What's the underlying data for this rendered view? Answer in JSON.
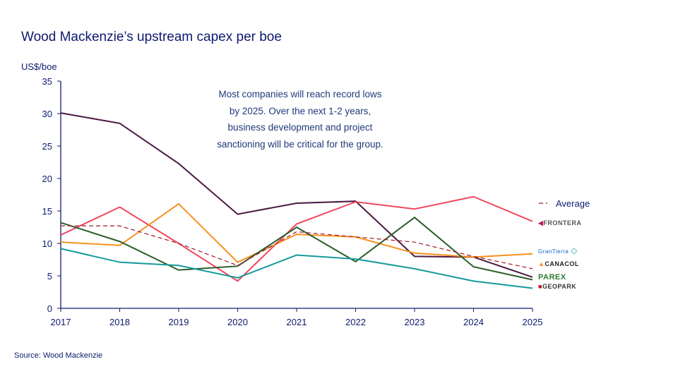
{
  "title": "Wood Mackenzie’s upstream capex per boe",
  "source": "Source: Wood Mackenzie",
  "note": "Most companies will reach record lows by 2025. Over the next 1-2 years, business development and project sanctioning will be critical for the group.",
  "chart_data": {
    "type": "line",
    "title": "Wood Mackenzie’s upstream capex per boe",
    "ylabel": "US$/boe",
    "xlabel": "",
    "ylim": [
      0,
      35
    ],
    "yticks": [
      0,
      5,
      10,
      15,
      20,
      25,
      30,
      35
    ],
    "x": [
      "2017",
      "2018",
      "2019",
      "2020",
      "2021",
      "2022",
      "2023",
      "2024",
      "2025"
    ],
    "grid": false,
    "legend": "right",
    "series": [
      {
        "name": "CANACOL",
        "color": "#4a1942",
        "dashed": false,
        "values": [
          30.1,
          28.5,
          22.3,
          14.5,
          16.2,
          16.5,
          8.0,
          7.9,
          4.8
        ]
      },
      {
        "name": "FRONTERA",
        "color": "#f2475f",
        "dashed": false,
        "values": [
          11.3,
          15.6,
          10.0,
          4.2,
          13.0,
          16.4,
          15.3,
          17.2,
          13.4
        ]
      },
      {
        "name": "GranTierra",
        "color": "#f7901e",
        "dashed": false,
        "values": [
          10.2,
          9.7,
          16.1,
          7.1,
          11.4,
          11.0,
          8.5,
          7.9,
          8.4
        ]
      },
      {
        "name": "PAREX",
        "color": "#2b5d2b",
        "dashed": false,
        "values": [
          13.2,
          10.3,
          5.9,
          6.5,
          12.5,
          7.2,
          14.0,
          6.4,
          4.4
        ]
      },
      {
        "name": "GEOPARK",
        "color": "#159a9c",
        "dashed": false,
        "values": [
          9.2,
          7.1,
          6.6,
          4.7,
          8.2,
          7.6,
          6.1,
          4.2,
          3.1
        ]
      },
      {
        "name": "Average",
        "color": "#a3172f",
        "dashed": true,
        "values": [
          12.7,
          12.7,
          10.0,
          6.6,
          11.8,
          11.0,
          10.2,
          8.0,
          6.1
        ]
      }
    ]
  },
  "logos": {
    "frontera": "FRONTERA",
    "grantierra": "GranTierra",
    "canacol": "CANACOL",
    "parex": "PAREX",
    "geopark": "GEOPARK"
  }
}
